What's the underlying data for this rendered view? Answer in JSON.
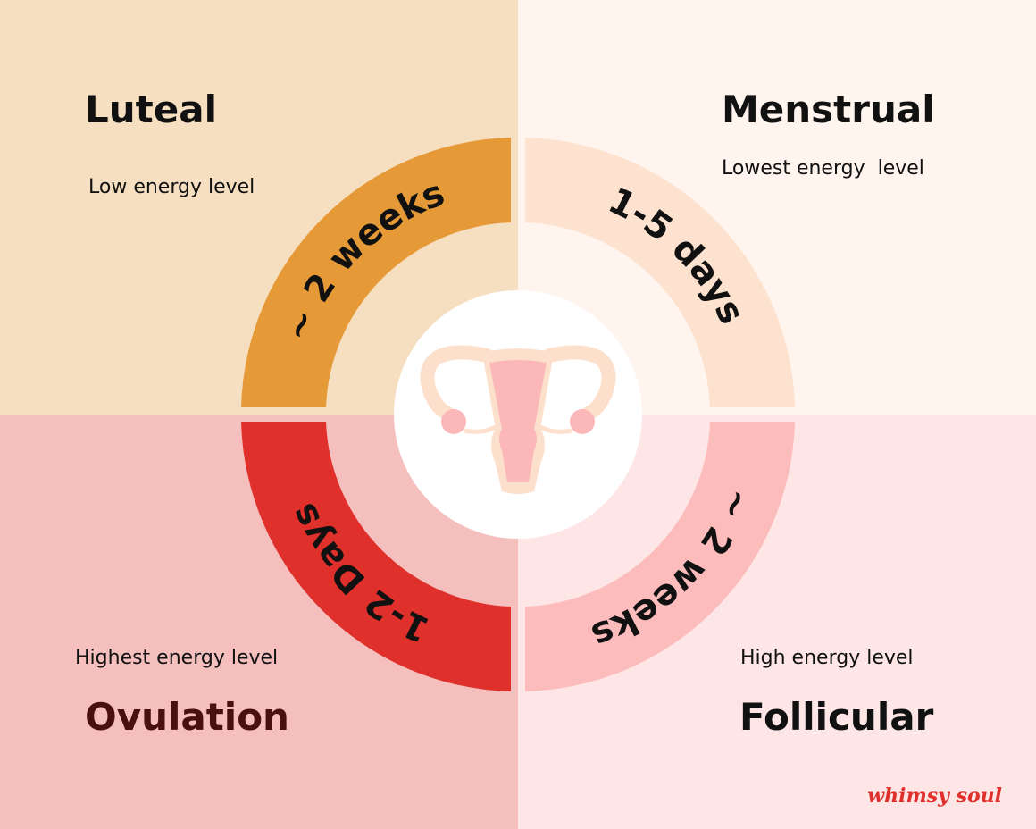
{
  "colors": {
    "luteal_bg": "#f6dfc1",
    "menstrual_bg": "#fff4ee",
    "ovulation_bg": "#f4bfbd",
    "follicular_bg": "#fee6e6",
    "luteal_ring": "#e69a37",
    "menstrual_ring": "#fde2cf",
    "ovulation_ring": "#e0302b",
    "follicular_ring": "#fdbcbc",
    "brand": "#e0302b"
  },
  "phases": {
    "luteal": {
      "name": "Luteal",
      "energy": "Low energy level",
      "duration": "~ 2 weeks"
    },
    "menstrual": {
      "name": "Menstrual",
      "energy": "Lowest energy  level",
      "duration": "1-5 days"
    },
    "ovulation": {
      "name": "Ovulation",
      "energy": "Highest energy level",
      "duration": "1-2 Days"
    },
    "follicular": {
      "name": "Follicular",
      "energy": "High energy level",
      "duration": "~ 2 weeks"
    }
  },
  "center_icon": "uterus-icon",
  "brand": "whimsy soul"
}
